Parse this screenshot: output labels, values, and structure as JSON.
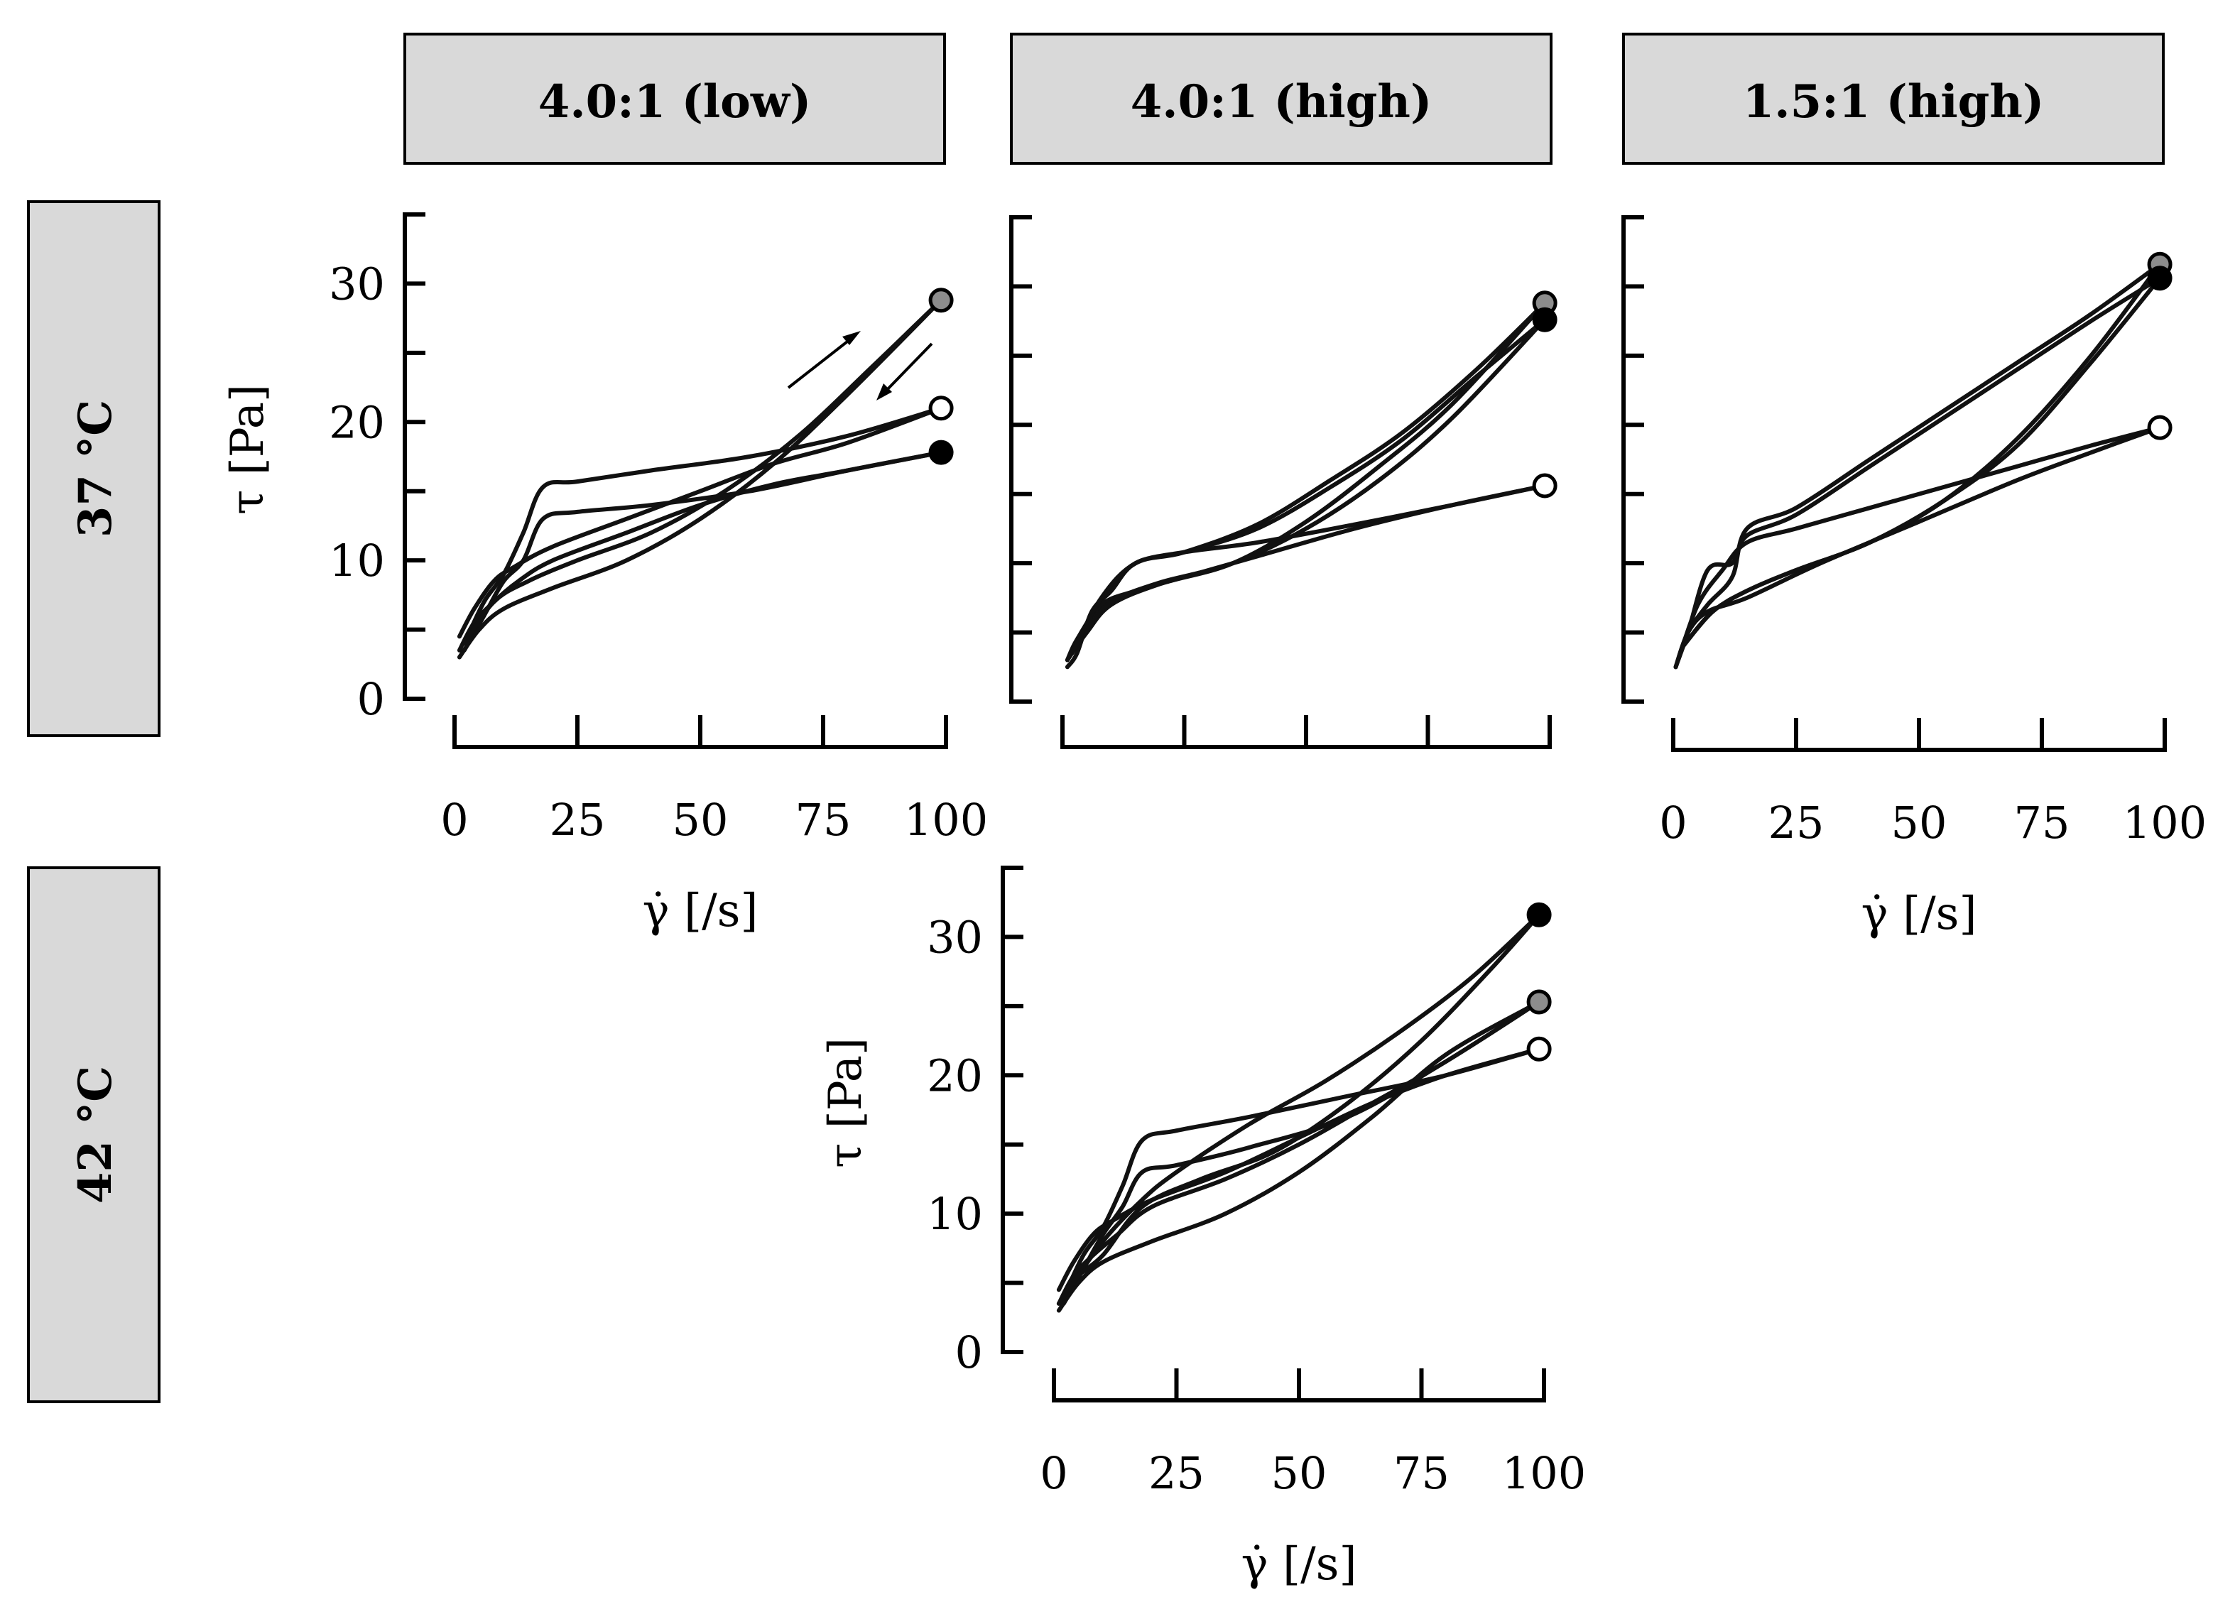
{
  "headers": {
    "columns": [
      "4.0:1 (low)",
      "4.0:1 (high)",
      "1.5:1 (high)"
    ],
    "rows": [
      "37 °C",
      "42 °C"
    ]
  },
  "axis_labels": {
    "y": "τ [Pa]",
    "x": "γ̇ [/s]"
  },
  "colors": {
    "open": "#ffffff",
    "gray": "#8c8c8c",
    "black": "#000000",
    "header_bg": "#d9d9d9"
  },
  "chart_data": [
    {
      "id": "37C-4.0low",
      "type": "line",
      "title": "4.0:1 (low)",
      "temperature": "37 °C",
      "xlabel": "γ̇ [/s]",
      "ylabel": "τ [Pa]",
      "xlim": [
        0,
        100
      ],
      "ylim": [
        0,
        35
      ],
      "xticks": [
        0,
        25,
        50,
        75,
        100
      ],
      "yticks": [
        0,
        10,
        20,
        30
      ],
      "show_xticklabels": true,
      "show_yticklabels": true,
      "show_xlabel": true,
      "show_ylabel": true,
      "annotations": [
        "up-arrow",
        "down-arrow"
      ],
      "series": [
        {
          "name": "open",
          "marker": "open",
          "up": [
            [
              1,
              4.5
            ],
            [
              4,
              6.5
            ],
            [
              8,
              8.5
            ],
            [
              12,
              9.5
            ],
            [
              20,
              11
            ],
            [
              35,
              13
            ],
            [
              50,
              15
            ],
            [
              65,
              17
            ],
            [
              80,
              18.5
            ],
            [
              99,
              21
            ]
          ],
          "down": [
            [
              99,
              21
            ],
            [
              80,
              19
            ],
            [
              60,
              17.5
            ],
            [
              40,
              16.5
            ],
            [
              25,
              15.7
            ],
            [
              18,
              15.3
            ],
            [
              14,
              12
            ],
            [
              10,
              9
            ],
            [
              6,
              7
            ],
            [
              2,
              4
            ]
          ]
        },
        {
          "name": "black",
          "marker": "black",
          "up": [
            [
              1,
              3.5
            ],
            [
              4,
              5.5
            ],
            [
              8,
              7
            ],
            [
              13,
              8.5
            ],
            [
              20,
              10
            ],
            [
              35,
              12
            ],
            [
              50,
              14
            ],
            [
              65,
              15.5
            ],
            [
              80,
              16.5
            ],
            [
              99,
              17.8
            ]
          ],
          "down": [
            [
              99,
              17.8
            ],
            [
              80,
              16.5
            ],
            [
              60,
              15
            ],
            [
              40,
              14
            ],
            [
              25,
              13.5
            ],
            [
              18,
              13
            ],
            [
              14,
              10
            ],
            [
              10,
              8.5
            ],
            [
              6,
              6
            ],
            [
              2,
              3.5
            ]
          ]
        },
        {
          "name": "gray",
          "marker": "gray",
          "up": [
            [
              1,
              3
            ],
            [
              5,
              5
            ],
            [
              10,
              6.5
            ],
            [
              20,
              8
            ],
            [
              35,
              10
            ],
            [
              50,
              13
            ],
            [
              65,
              17
            ],
            [
              80,
              22
            ],
            [
              99,
              28.8
            ]
          ],
          "down": [
            [
              99,
              28.8
            ],
            [
              85,
              24
            ],
            [
              70,
              19
            ],
            [
              55,
              15
            ],
            [
              40,
              12
            ],
            [
              25,
              10
            ],
            [
              15,
              8.5
            ],
            [
              8,
              7
            ],
            [
              2,
              4
            ]
          ]
        }
      ]
    },
    {
      "id": "37C-4.0high",
      "type": "line",
      "title": "4.0:1 (high)",
      "temperature": "37 °C",
      "xlabel": "γ̇ [/s]",
      "ylabel": "τ [Pa]",
      "xlim": [
        0,
        100
      ],
      "ylim": [
        0,
        35
      ],
      "xticks": [
        0,
        25,
        50,
        75,
        100
      ],
      "yticks": [
        0,
        10,
        20,
        30
      ],
      "show_xticklabels": false,
      "show_yticklabels": false,
      "show_xlabel": false,
      "show_ylabel": false,
      "series": [
        {
          "name": "open",
          "marker": "open",
          "up": [
            [
              1,
              2.5
            ],
            [
              3,
              3.5
            ],
            [
              6,
              6.5
            ],
            [
              10,
              8
            ],
            [
              15,
              10
            ],
            [
              25,
              10.8
            ],
            [
              40,
              11.5
            ],
            [
              60,
              12.8
            ],
            [
              80,
              14.2
            ],
            [
              99,
              15.6
            ]
          ],
          "down": [
            [
              99,
              15.6
            ],
            [
              80,
              14.2
            ],
            [
              60,
              12.5
            ],
            [
              40,
              10.5
            ],
            [
              25,
              9
            ],
            [
              15,
              8
            ],
            [
              8,
              7
            ],
            [
              3,
              4.5
            ],
            [
              1,
              3
            ]
          ]
        },
        {
          "name": "gray",
          "marker": "gray",
          "up": [
            [
              1,
              3
            ],
            [
              5,
              5
            ],
            [
              10,
              7
            ],
            [
              20,
              8.5
            ],
            [
              35,
              10
            ],
            [
              50,
              13
            ],
            [
              65,
              17
            ],
            [
              80,
              21.5
            ],
            [
              99,
              28.8
            ]
          ],
          "down": [
            [
              99,
              28.8
            ],
            [
              85,
              24
            ],
            [
              70,
              19.5
            ],
            [
              55,
              16
            ],
            [
              40,
              12.8
            ],
            [
              25,
              10.8
            ],
            [
              15,
              10
            ],
            [
              8,
              7.5
            ],
            [
              2,
              3.5
            ]
          ]
        },
        {
          "name": "black",
          "marker": "black",
          "up": [
            [
              1,
              3
            ],
            [
              5,
              5.2
            ],
            [
              10,
              7.2
            ],
            [
              20,
              8.6
            ],
            [
              35,
              10
            ],
            [
              50,
              12.5
            ],
            [
              65,
              16
            ],
            [
              80,
              20.5
            ],
            [
              99,
              27.6
            ]
          ],
          "down": [
            [
              99,
              27.6
            ],
            [
              85,
              23.5
            ],
            [
              70,
              19
            ],
            [
              55,
              15.5
            ],
            [
              40,
              12.5
            ],
            [
              25,
              10.8
            ],
            [
              15,
              10
            ],
            [
              8,
              7.5
            ],
            [
              2,
              3.5
            ]
          ]
        }
      ]
    },
    {
      "id": "37C-1.5high",
      "type": "line",
      "title": "1.5:1 (high)",
      "temperature": "37 °C",
      "xlabel": "γ̇ [/s]",
      "ylabel": "τ [Pa]",
      "xlim": [
        0,
        100
      ],
      "ylim": [
        0,
        35
      ],
      "xticks": [
        0,
        25,
        50,
        75,
        100
      ],
      "yticks": [
        0,
        10,
        20,
        30
      ],
      "show_xticklabels": true,
      "show_yticklabels": false,
      "show_xlabel": true,
      "show_ylabel": false,
      "series": [
        {
          "name": "open",
          "marker": "open",
          "up": [
            [
              0.5,
              2.5
            ],
            [
              3,
              5
            ],
            [
              7,
              6.5
            ],
            [
              15,
              7.5
            ],
            [
              30,
              10
            ],
            [
              50,
              13
            ],
            [
              70,
              16
            ],
            [
              85,
              18
            ],
            [
              99,
              19.8
            ]
          ],
          "down": [
            [
              99,
              19.8
            ],
            [
              85,
              18.5
            ],
            [
              70,
              17
            ],
            [
              55,
              15.5
            ],
            [
              40,
              14
            ],
            [
              25,
              12.5
            ],
            [
              15,
              11.5
            ],
            [
              10,
              9.5
            ],
            [
              5,
              7
            ],
            [
              1,
              3
            ]
          ]
        },
        {
          "name": "gray",
          "marker": "gray",
          "up": [
            [
              0.5,
              2.5
            ],
            [
              3,
              5
            ],
            [
              7,
              7
            ],
            [
              12,
              9
            ],
            [
              15,
              12.5
            ],
            [
              25,
              14
            ],
            [
              40,
              17.5
            ],
            [
              55,
              21
            ],
            [
              70,
              24.5
            ],
            [
              85,
              28
            ],
            [
              99,
              31.6
            ]
          ],
          "down": [
            [
              99,
              31.6
            ],
            [
              85,
              25
            ],
            [
              70,
              19
            ],
            [
              55,
              14.5
            ],
            [
              40,
              11.5
            ],
            [
              25,
              9.5
            ],
            [
              15,
              8
            ],
            [
              8,
              6.5
            ],
            [
              2,
              4
            ]
          ]
        },
        {
          "name": "black",
          "marker": "black",
          "up": [
            [
              0.5,
              2.5
            ],
            [
              3,
              5
            ],
            [
              7,
              9.5
            ],
            [
              12,
              10
            ],
            [
              15,
              12
            ],
            [
              25,
              13.5
            ],
            [
              40,
              17
            ],
            [
              55,
              20.5
            ],
            [
              70,
              24
            ],
            [
              85,
              27.5
            ],
            [
              99,
              30.6
            ]
          ],
          "down": [
            [
              99,
              30.6
            ],
            [
              85,
              24.5
            ],
            [
              70,
              18.5
            ],
            [
              55,
              14.5
            ],
            [
              40,
              11.5
            ],
            [
              25,
              9.5
            ],
            [
              15,
              8
            ],
            [
              8,
              6.5
            ],
            [
              2,
              4
            ]
          ]
        }
      ]
    },
    {
      "id": "42C-4.0high",
      "type": "line",
      "title": "4.0:1 (high)",
      "temperature": "42 °C",
      "xlabel": "γ̇ [/s]",
      "ylabel": "τ [Pa]",
      "xlim": [
        0,
        100
      ],
      "ylim": [
        0,
        35
      ],
      "xticks": [
        0,
        25,
        50,
        75,
        100
      ],
      "yticks": [
        0,
        10,
        20,
        30
      ],
      "show_xticklabels": true,
      "show_yticklabels": true,
      "show_xlabel": true,
      "show_ylabel": true,
      "series": [
        {
          "name": "open",
          "marker": "open",
          "up": [
            [
              1,
              4.5
            ],
            [
              4,
              6.5
            ],
            [
              8,
              8.5
            ],
            [
              12,
              9.5
            ],
            [
              20,
              11
            ],
            [
              35,
              13
            ],
            [
              50,
              15.5
            ],
            [
              65,
              18
            ],
            [
              80,
              20
            ],
            [
              99,
              21.9
            ]
          ],
          "down": [
            [
              99,
              21.9
            ],
            [
              80,
              20
            ],
            [
              60,
              18.5
            ],
            [
              40,
              17
            ],
            [
              25,
              16
            ],
            [
              18,
              15.3
            ],
            [
              14,
              12
            ],
            [
              10,
              9
            ],
            [
              6,
              7
            ],
            [
              2,
              4
            ]
          ]
        },
        {
          "name": "gray",
          "marker": "gray",
          "up": [
            [
              1,
              3.5
            ],
            [
              4,
              5.5
            ],
            [
              8,
              7
            ],
            [
              13,
              8.5
            ],
            [
              20,
              10.5
            ],
            [
              35,
              12.5
            ],
            [
              50,
              15
            ],
            [
              65,
              18
            ],
            [
              80,
              21
            ],
            [
              99,
              25.3
            ]
          ],
          "down": [
            [
              99,
              25.3
            ],
            [
              80,
              21
            ],
            [
              60,
              17
            ],
            [
              40,
              14.8
            ],
            [
              25,
              13.5
            ],
            [
              18,
              13
            ],
            [
              14,
              10.5
            ],
            [
              10,
              8.5
            ],
            [
              6,
              6
            ],
            [
              2,
              3.5
            ]
          ]
        },
        {
          "name": "black",
          "marker": "black",
          "up": [
            [
              1,
              3
            ],
            [
              5,
              5
            ],
            [
              10,
              6.5
            ],
            [
              20,
              8
            ],
            [
              35,
              10
            ],
            [
              50,
              13
            ],
            [
              65,
              17
            ],
            [
              80,
              21.5
            ],
            [
              99,
              25.3
            ]
          ],
          "down": [
            [
              99,
              31.6
            ],
            [
              85,
              27
            ],
            [
              70,
              23
            ],
            [
              55,
              19.5
            ],
            [
              40,
              16.5
            ],
            [
              25,
              13
            ],
            [
              18,
              11
            ],
            [
              10,
              8
            ],
            [
              2,
              4
            ]
          ]
        },
        {
          "name": "black-up",
          "marker": "black",
          "up": [
            [
              1,
              3.5
            ],
            [
              5,
              5.5
            ],
            [
              10,
              7
            ],
            [
              18,
              10.5
            ],
            [
              30,
              12.5
            ],
            [
              45,
              14.5
            ],
            [
              60,
              18
            ],
            [
              75,
              22.5
            ],
            [
              90,
              28
            ],
            [
              99,
              31.6
            ]
          ],
          "down": []
        }
      ]
    }
  ]
}
